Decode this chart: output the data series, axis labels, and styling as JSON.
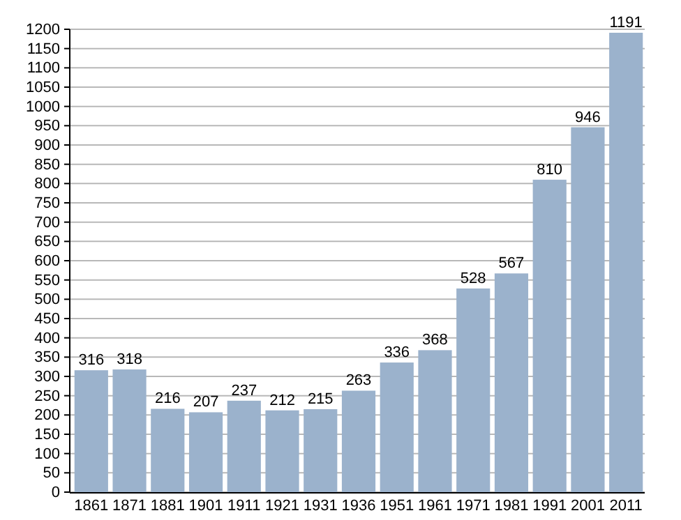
{
  "chart_data": {
    "type": "bar",
    "categories": [
      "1861",
      "1871",
      "1881",
      "1901",
      "1911",
      "1921",
      "1931",
      "1936",
      "1951",
      "1961",
      "1971",
      "1981",
      "1991",
      "2001",
      "2011"
    ],
    "values": [
      316,
      318,
      216,
      207,
      237,
      212,
      215,
      263,
      336,
      368,
      528,
      567,
      810,
      946,
      1191
    ],
    "color": "#9bb2cc",
    "data_labels": true,
    "grid": "y",
    "ylim": [
      0,
      1200
    ],
    "yticks": [
      0,
      50,
      100,
      150,
      200,
      250,
      300,
      350,
      400,
      450,
      500,
      550,
      600,
      650,
      700,
      750,
      800,
      850,
      900,
      950,
      1000,
      1050,
      1100,
      1150,
      1200
    ]
  }
}
